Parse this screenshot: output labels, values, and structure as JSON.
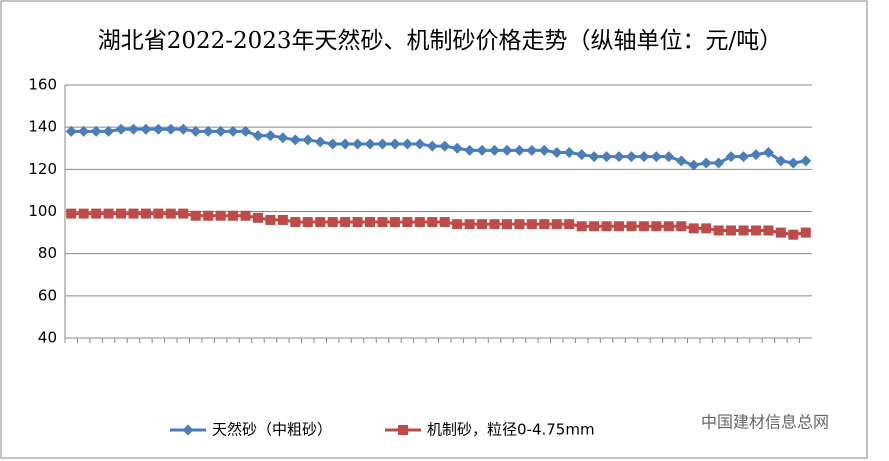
{
  "chart_data": {
    "type": "line",
    "title": "湖北省2022-2023年天然砂、机制砂价格走势（纵轴单位：元/吨）",
    "watermark": "中国建材信息总网",
    "categories": [
      null,
      null,
      null,
      null,
      null,
      null,
      null,
      null,
      null,
      null,
      null,
      null,
      null,
      null,
      null,
      null,
      null,
      null,
      null,
      null,
      null,
      null,
      null,
      null,
      null,
      null,
      null,
      null,
      null,
      null,
      null,
      null,
      null,
      null,
      null,
      null,
      null,
      null,
      null,
      null,
      null,
      null,
      null,
      null,
      null,
      null,
      null,
      null,
      null,
      null,
      null,
      null,
      null,
      null,
      null,
      null,
      null,
      null,
      null,
      null
    ],
    "series": [
      {
        "name": "天然砂（中粗砂）",
        "color": "#4a7ebb",
        "marker": "diamond",
        "values": [
          138,
          138,
          138,
          138,
          139,
          139,
          139,
          139,
          139,
          139,
          138,
          138,
          138,
          138,
          138,
          136,
          136,
          135,
          134,
          134,
          133,
          132,
          132,
          132,
          132,
          132,
          132,
          132,
          132,
          131,
          131,
          130,
          129,
          129,
          129,
          129,
          129,
          129,
          129,
          128,
          128,
          127,
          126,
          126,
          126,
          126,
          126,
          126,
          126,
          124,
          122,
          123,
          123,
          126,
          126,
          127,
          128,
          124,
          123,
          124
        ]
      },
      {
        "name": "机制砂，粒径0-4.75mm",
        "color": "#be4b48",
        "marker": "square",
        "values": [
          99,
          99,
          99,
          99,
          99,
          99,
          99,
          99,
          99,
          99,
          98,
          98,
          98,
          98,
          98,
          97,
          96,
          96,
          95,
          95,
          95,
          95,
          95,
          95,
          95,
          95,
          95,
          95,
          95,
          95,
          95,
          94,
          94,
          94,
          94,
          94,
          94,
          94,
          94,
          94,
          94,
          93,
          93,
          93,
          93,
          93,
          93,
          93,
          93,
          93,
          92,
          92,
          91,
          91,
          91,
          91,
          91,
          90,
          89,
          90
        ]
      }
    ],
    "ylim": [
      40,
      160
    ],
    "yticks": [
      40,
      60,
      80,
      100,
      120,
      140,
      160
    ],
    "grid": true,
    "legend": "bottom"
  }
}
